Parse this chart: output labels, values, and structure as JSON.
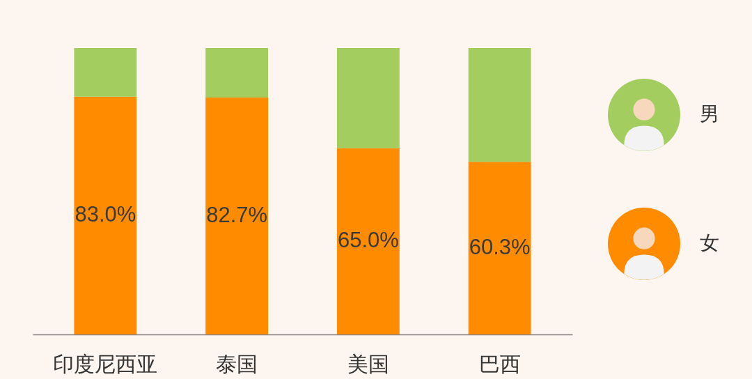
{
  "chart_data": {
    "type": "bar",
    "stacked": true,
    "categories": [
      "印度尼西亚",
      "泰国",
      "美国",
      "巴西"
    ],
    "series": [
      {
        "name": "女",
        "color": "#ff8c00",
        "values": [
          83.0,
          82.7,
          65.0,
          60.3
        ],
        "value_labels": [
          "83.0%",
          "82.7%",
          "65.0%",
          "60.3%"
        ]
      },
      {
        "name": "男",
        "color": "#a3cd5f",
        "values": [
          17.0,
          17.3,
          35.0,
          39.7
        ]
      }
    ],
    "ylim": [
      0,
      100
    ],
    "tick_labels": "x",
    "legend": "right"
  }
}
